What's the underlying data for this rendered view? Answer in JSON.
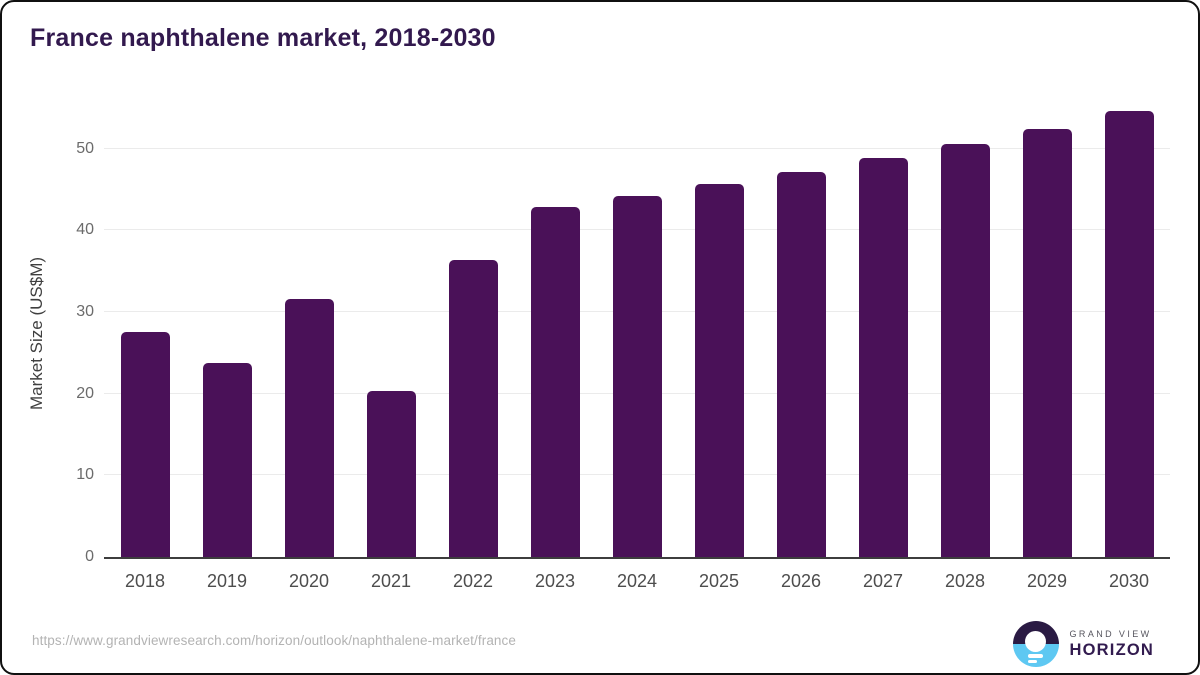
{
  "title": "France naphthalene market, 2018-2030",
  "footer": {
    "source_url": "https://www.grandviewresearch.com/horizon/outlook/naphthalene-market/france",
    "logo": {
      "line1": "GRAND VIEW",
      "line2": "HORIZON"
    }
  },
  "colors": {
    "bar": "#4a1158",
    "title": "#32194e",
    "axis_line": "#3d3d3d",
    "gridline": "#ebebeb",
    "logo_dark": "#2a1a43",
    "logo_blue": "#5ec8f2"
  },
  "chart_data": {
    "type": "bar",
    "title": "France naphthalene market, 2018-2030",
    "categories": [
      "2018",
      "2019",
      "2020",
      "2021",
      "2022",
      "2023",
      "2024",
      "2025",
      "2026",
      "2027",
      "2028",
      "2029",
      "2030"
    ],
    "values": [
      27.6,
      23.8,
      31.6,
      20.3,
      36.4,
      42.9,
      44.2,
      45.7,
      47.2,
      48.9,
      50.6,
      52.4,
      54.6
    ],
    "xlabel": "",
    "ylabel": "Market Size (US$M)",
    "ylim": [
      0,
      55
    ],
    "yticks": [
      0,
      10,
      20,
      30,
      40,
      50
    ],
    "grid": true,
    "legend": false,
    "bar_color": "#4a1158"
  }
}
